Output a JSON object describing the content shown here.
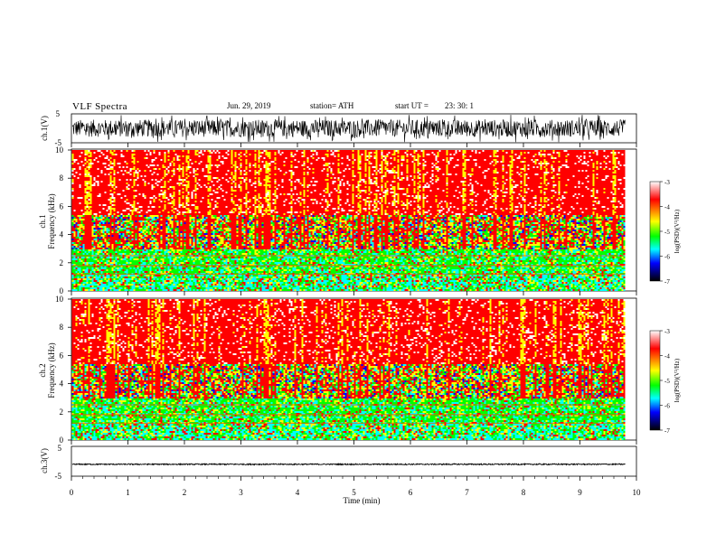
{
  "header": {
    "title": "VLF  Spectra",
    "date": "Jun. 29, 2019",
    "station": "station= ATH",
    "start_label": "start  UT  =",
    "start_value": "23: 30: 1"
  },
  "colorbar": {
    "label": "log(PSD)(V²/Hz)",
    "ticks": [
      "-3",
      "-4",
      "-5",
      "-6",
      "-7"
    ],
    "stops": [
      "#ffffff",
      "#ff0000",
      "#ffff00",
      "#00ff00",
      "#00ffff",
      "#0000ff",
      "#000000"
    ]
  },
  "chart_data": [
    {
      "type": "line",
      "panel": "ch1-waveform",
      "ylabel": "ch.1(V)",
      "ylim": [
        -5,
        5
      ],
      "yticks": [
        "5",
        "-5"
      ],
      "x_range_min": [
        0,
        9.8
      ],
      "description_values": {
        "mean": 0,
        "typical_amplitude": 3
      }
    },
    {
      "type": "heatmap",
      "panel": "ch1-spectrogram",
      "ylabel": "ch.1 Frequency (kHz)",
      "ylim": [
        0,
        10
      ],
      "yticks": [
        "0",
        "2",
        "4",
        "6",
        "8",
        "10"
      ],
      "zlabel": "log(PSD)(V²/Hz)",
      "zlim": [
        -7,
        -3
      ]
    },
    {
      "type": "heatmap",
      "panel": "ch2-spectrogram",
      "ylabel": "ch.2 Frequency (kHz)",
      "ylim": [
        0,
        10
      ],
      "yticks": [
        "0",
        "2",
        "4",
        "6",
        "8",
        "10"
      ],
      "zlabel": "log(PSD)(V²/Hz)",
      "zlim": [
        -7,
        -3
      ]
    },
    {
      "type": "line",
      "panel": "ch3-waveform",
      "ylabel": "ch.3(V)",
      "ylim": [
        -5,
        5
      ],
      "yticks": [
        "5",
        "-5"
      ],
      "x_range_min": [
        0,
        9.8
      ],
      "description_values": {
        "mean": -1,
        "typical_amplitude": 0.2
      }
    }
  ],
  "xaxis": {
    "label": "Time  (min)",
    "range": [
      0,
      10
    ],
    "ticks": [
      "0",
      "1",
      "2",
      "3",
      "4",
      "5",
      "6",
      "7",
      "8",
      "9",
      "10"
    ]
  }
}
